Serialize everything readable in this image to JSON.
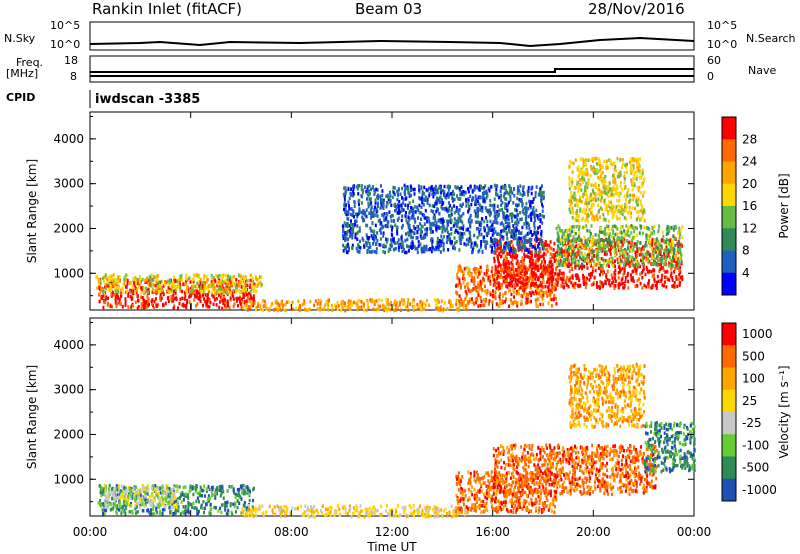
{
  "header": {
    "station": "Rankin Inlet (fitACF)",
    "beam": "Beam 03",
    "date": "28/Nov/2016"
  },
  "summary_panel": {
    "nsky_label": "N.Sky",
    "nsearch_label": "N.Search",
    "freq_label_1": "Freq.",
    "freq_label_2": "[MHz]",
    "nave_label": "Nave",
    "cpid_label": "CPID",
    "cpid_value": "iwdscan -3385",
    "noise_ticks": [
      "10^5",
      "10^0"
    ],
    "freq_ticks": [
      "18",
      "8"
    ],
    "nave_ticks": [
      "60",
      "0"
    ]
  },
  "colors": {
    "power_scale": [
      "#0000ff",
      "#1f5fbf",
      "#2e8b57",
      "#66bb44",
      "#ffd700",
      "#ffa500",
      "#ff6a00",
      "#ff0000"
    ],
    "velocity_scale": [
      "#ff0000",
      "#ff6a00",
      "#ffa500",
      "#ffd700",
      "#c8c8c8",
      "#66cc33",
      "#2e8b57",
      "#1f4fb5"
    ]
  },
  "chart_data": [
    {
      "type": "heatmap",
      "panel": "power",
      "ylabel": "Slant Range [km]",
      "xlabel": "",
      "ylim": [
        180,
        4600
      ],
      "xlim": [
        0,
        24
      ],
      "y_ticks": [
        "1000",
        "2000",
        "3000",
        "4000"
      ],
      "x_ticks": [
        "00:00",
        "04:00",
        "08:00",
        "12:00",
        "16:00",
        "20:00",
        "00:00"
      ],
      "colorbar_label": "Power [dB]",
      "colorbar_ticks": [
        "4",
        "8",
        "12",
        "16",
        "20",
        "24",
        "28"
      ],
      "regions": [
        {
          "t": [
            0.3,
            6.5
          ],
          "r": [
            250,
            900
          ],
          "level": 7
        },
        {
          "t": [
            0.2,
            6.8
          ],
          "r": [
            600,
            1000
          ],
          "level": 4
        },
        {
          "t": [
            6.0,
            15.0
          ],
          "r": [
            200,
            450
          ],
          "level": 5
        },
        {
          "t": [
            14.5,
            18.5
          ],
          "r": [
            300,
            1200
          ],
          "level": 6
        },
        {
          "t": [
            16.0,
            23.5
          ],
          "r": [
            700,
            1800
          ],
          "level": 7
        },
        {
          "t": [
            18.5,
            23.5
          ],
          "r": [
            1200,
            2100
          ],
          "level": 3
        },
        {
          "t": [
            19.0,
            22.0
          ],
          "r": [
            2200,
            3600
          ],
          "level": 4
        },
        {
          "t": [
            10.0,
            18.0
          ],
          "r": [
            1500,
            3000
          ],
          "level": 1
        }
      ]
    },
    {
      "type": "heatmap",
      "panel": "velocity",
      "ylabel": "Slant Range [km]",
      "xlabel": "Time UT",
      "ylim": [
        180,
        4600
      ],
      "xlim": [
        0,
        24
      ],
      "y_ticks": [
        "1000",
        "2000",
        "3000",
        "4000"
      ],
      "x_ticks": [
        "00:00",
        "04:00",
        "08:00",
        "12:00",
        "16:00",
        "20:00",
        "00:00"
      ],
      "colorbar_label": "Velocity [m s⁻¹]",
      "colorbar_ticks": [
        "1000",
        "500",
        "100",
        "25",
        "-25",
        "-100",
        "-500",
        "-1000"
      ],
      "regions": [
        {
          "t": [
            0.3,
            6.5
          ],
          "r": [
            250,
            900
          ],
          "level": 6
        },
        {
          "t": [
            0.5,
            3.5
          ],
          "r": [
            400,
            900
          ],
          "level": 4
        },
        {
          "t": [
            6.0,
            15.0
          ],
          "r": [
            200,
            450
          ],
          "level": 3
        },
        {
          "t": [
            14.5,
            18.5
          ],
          "r": [
            300,
            1200
          ],
          "level": 1
        },
        {
          "t": [
            16.0,
            22.5
          ],
          "r": [
            700,
            1800
          ],
          "level": 1
        },
        {
          "t": [
            22.0,
            24.0
          ],
          "r": [
            1200,
            2300
          ],
          "level": 6
        },
        {
          "t": [
            19.0,
            22.0
          ],
          "r": [
            2200,
            3600
          ],
          "level": 2
        }
      ]
    }
  ]
}
